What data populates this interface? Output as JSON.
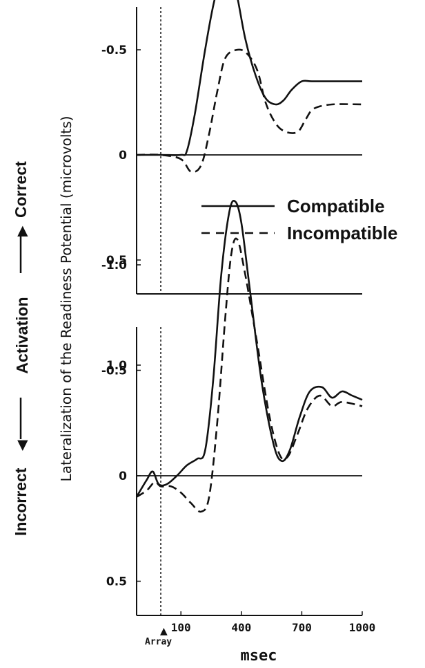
{
  "figure": {
    "ylabel": "Lateralization of the Readiness Potential (microvolts)",
    "side_label_incorrect": "Incorrect",
    "side_label_activation": "Activation",
    "side_label_correct": "Correct",
    "xlabel": "msec",
    "array_label": "Array",
    "colors": {
      "ink": "#111111",
      "background": "#ffffff"
    }
  },
  "chart_data": [
    {
      "type": "line",
      "panel": "top",
      "xlim": [
        -120,
        1000
      ],
      "ylim": [
        -1.3,
        1.3
      ],
      "y_inverted": true,
      "yticks": [
        -1.0,
        -0.5,
        0,
        0.5,
        1.0
      ],
      "ytick_labels": [
        "-1.0",
        "-0.5",
        "0",
        "0.5",
        "1.0"
      ],
      "xticks": [],
      "reference_line": 0,
      "array_onset_x": 0,
      "legend": {
        "placement": "right",
        "entries": [
          "Compatible",
          "Incompatible"
        ]
      },
      "series": [
        {
          "name": "Compatible",
          "style": "solid",
          "x": [
            -120,
            0,
            100,
            130,
            170,
            220,
            270,
            320,
            350,
            380,
            420,
            470,
            520,
            570,
            610,
            650,
            700,
            750,
            850,
            1000
          ],
          "y": [
            0,
            0,
            0,
            -0.02,
            -0.2,
            -0.5,
            -0.75,
            -0.86,
            -0.85,
            -0.75,
            -0.55,
            -0.38,
            -0.27,
            -0.24,
            -0.26,
            -0.31,
            -0.35,
            -0.35,
            -0.35,
            -0.35
          ]
        },
        {
          "name": "Incompatible",
          "style": "dashed",
          "x": [
            -120,
            0,
            100,
            150,
            200,
            240,
            280,
            320,
            380,
            430,
            480,
            520,
            570,
            620,
            680,
            720,
            760,
            850,
            1000
          ],
          "y": [
            0,
            0,
            0.02,
            0.08,
            0.05,
            -0.1,
            -0.3,
            -0.46,
            -0.5,
            -0.48,
            -0.4,
            -0.25,
            -0.15,
            -0.11,
            -0.11,
            -0.17,
            -0.22,
            -0.24,
            -0.24
          ]
        }
      ]
    },
    {
      "type": "line",
      "panel": "bottom",
      "xlim": [
        -120,
        1000
      ],
      "ylim": [
        -1.35,
        1.35
      ],
      "y_inverted": true,
      "yticks": [
        -1.0,
        -0.5,
        0,
        0.5,
        1.0
      ],
      "ytick_labels": [
        "-1.0",
        "-0.5",
        "0",
        "0.5",
        "1.0"
      ],
      "xticks": [
        100,
        400,
        700,
        1000
      ],
      "xtick_labels": [
        "100",
        "400",
        "700",
        "1000"
      ],
      "reference_line": 0,
      "array_onset_x": 0,
      "series": [
        {
          "name": "Compatible",
          "style": "solid",
          "x": [
            -120,
            -70,
            -40,
            -10,
            30,
            80,
            130,
            180,
            220,
            260,
            300,
            340,
            370,
            400,
            440,
            500,
            560,
            600,
            640,
            690,
            740,
            800,
            850,
            900,
            950,
            1000
          ],
          "y": [
            0.1,
            0.02,
            -0.02,
            0.04,
            0.04,
            0,
            -0.05,
            -0.08,
            -0.12,
            -0.45,
            -0.95,
            -1.25,
            -1.3,
            -1.2,
            -0.9,
            -0.45,
            -0.15,
            -0.07,
            -0.12,
            -0.28,
            -0.4,
            -0.42,
            -0.37,
            -0.4,
            -0.38,
            -0.36
          ]
        },
        {
          "name": "Incompatible",
          "style": "dashed",
          "x": [
            -120,
            -70,
            -30,
            0,
            50,
            100,
            150,
            200,
            240,
            280,
            320,
            350,
            380,
            420,
            480,
            540,
            590,
            630,
            680,
            730,
            790,
            850,
            900,
            1000
          ],
          "y": [
            0.1,
            0.07,
            0.03,
            0.05,
            0.05,
            0.08,
            0.13,
            0.17,
            0.1,
            -0.25,
            -0.75,
            -1.05,
            -1.12,
            -0.95,
            -0.62,
            -0.28,
            -0.1,
            -0.09,
            -0.2,
            -0.32,
            -0.38,
            -0.33,
            -0.35,
            -0.33
          ]
        }
      ]
    }
  ]
}
